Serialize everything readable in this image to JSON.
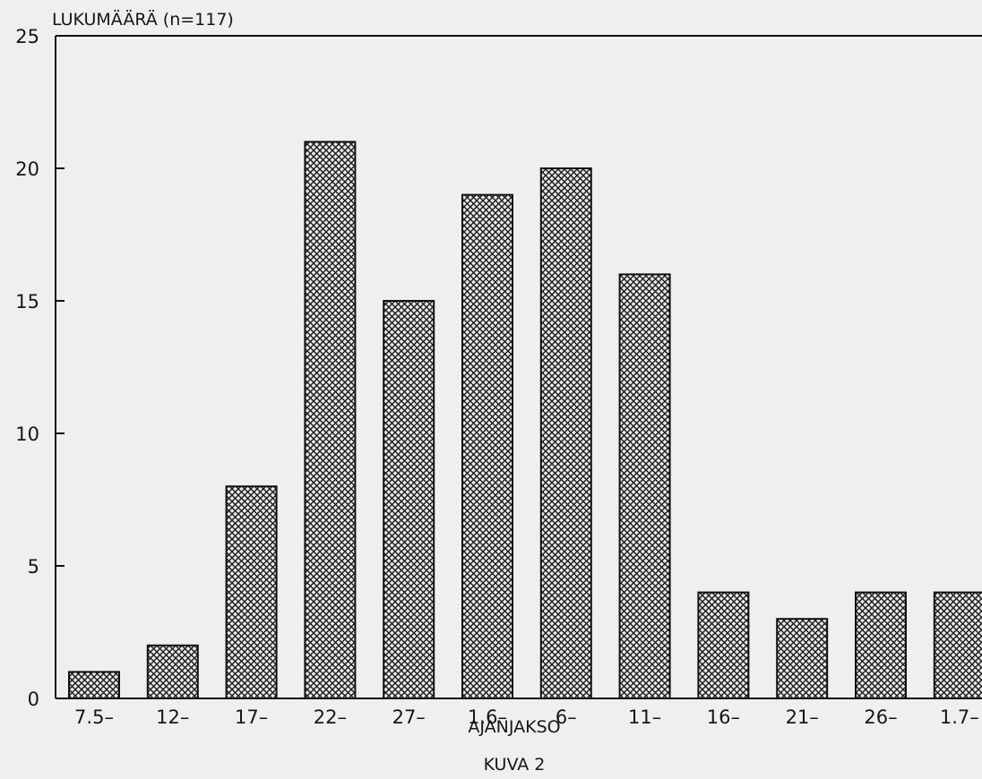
{
  "chart_data": {
    "type": "bar",
    "ylabel": "LUKUMÄÄRÄ (n=117)",
    "xlabel": "AJANJAKSO",
    "caption": "KUVA 2",
    "categories": [
      "7.5–",
      "12–",
      "17–",
      "22–",
      "27–",
      "1.6–",
      "6–",
      "11–",
      "16–",
      "21–",
      "26–",
      "1.7–"
    ],
    "values": [
      1,
      2,
      8,
      21,
      15,
      19,
      20,
      16,
      4,
      3,
      4,
      4
    ],
    "ylim": [
      0,
      25
    ],
    "yticks": [
      "0",
      "5",
      "10",
      "15",
      "20",
      "25"
    ],
    "grid": false,
    "legend": "none",
    "bar_fill": "crosshatch",
    "colors": {
      "bar_stroke": "#111111",
      "hatch": "#1a1a1a",
      "bar_face": "#e9e9e7",
      "axis": "#111111",
      "paper": "#efefee"
    }
  }
}
